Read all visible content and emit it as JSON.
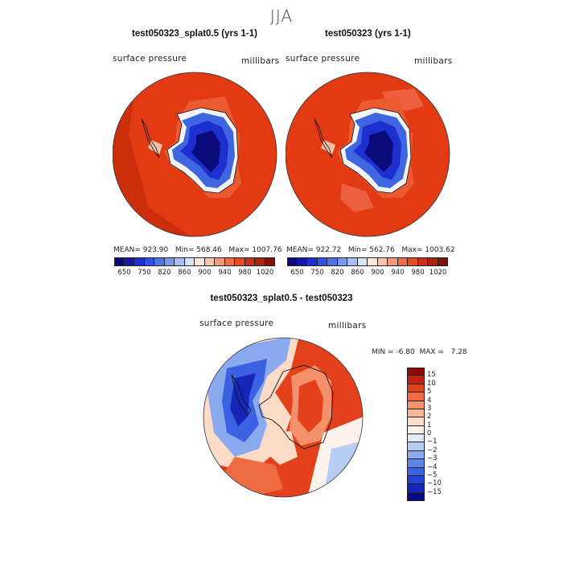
{
  "season": "JJA",
  "variable": "surface pressure",
  "units": "millibars",
  "panels": [
    {
      "title": "test050323_splat0.5 (yrs 1-1)",
      "stats": {
        "mean_label": "MEAN=",
        "mean": "923.90",
        "min_label": "Min=",
        "min": "568.46",
        "max_label": "Max=",
        "max": "1007.76"
      }
    },
    {
      "title": "test050323 (yrs 1-1)",
      "stats": {
        "mean_label": "MEAN=",
        "mean": "922.72",
        "min_label": "Min=",
        "min": "562.76",
        "max_label": "Max=",
        "max": "1003.62"
      }
    }
  ],
  "main_colorbar": {
    "colors": [
      "#0a0a7a",
      "#1616a8",
      "#1e2fd0",
      "#2f50e0",
      "#4e73e6",
      "#7a98ec",
      "#a8bff2",
      "#d9e4f7",
      "#fde8dc",
      "#f9c6ad",
      "#f39a78",
      "#ec6d49",
      "#e44d22",
      "#c8321a",
      "#a62611",
      "#7e1408"
    ],
    "labels": [
      "650",
      "750",
      "820",
      "860",
      "900",
      "940",
      "980",
      "1020"
    ]
  },
  "difference": {
    "title": "test050323_splat0.5 - test050323",
    "min_label": "MIN =",
    "min": "-6.80",
    "max_label": "MAX =",
    "max": "7.28",
    "colorbar": {
      "colors": [
        "#8a0a05",
        "#c22212",
        "#e3411c",
        "#ee6a40",
        "#f4916a",
        "#f8b895",
        "#fcdcc6",
        "#fdf3ec",
        "#e3ecfa",
        "#b8cdf4",
        "#8aa9ee",
        "#5d85e8",
        "#3a62e2",
        "#2343d6",
        "#1526b8",
        "#0a0a82"
      ],
      "labels": [
        "15",
        "10",
        "5",
        "4",
        "3",
        "2",
        "1",
        "0",
        "−1",
        "−2",
        "−3",
        "−4",
        "−5",
        "−10",
        "−15"
      ]
    }
  }
}
